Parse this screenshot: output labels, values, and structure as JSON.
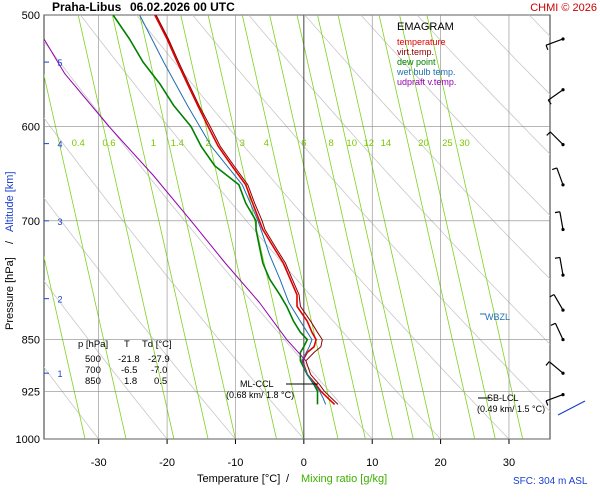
{
  "header": {
    "station": "Praha-Libus",
    "datetime": "06.02.2026 00 UTC",
    "credit": "CHMI © 2026"
  },
  "colors": {
    "temperature": "#e00000",
    "virt_temp": "#8b0000",
    "dew_point": "#008000",
    "wet_bulb": "#1e6fb0",
    "udpraft": "#9400b0",
    "mixing_ratio": "#7ed321",
    "dry_adiabat": "#c8c8c8",
    "altitude": "#1a3fd0",
    "grid": "#8a8a8a",
    "credit": "#cc0000"
  },
  "legend": {
    "title": "EMAGRAM",
    "items": [
      {
        "label": "temperature",
        "color": "#e00000"
      },
      {
        "label": "virt.temp.",
        "color": "#8b0000"
      },
      {
        "label": "dew point",
        "color": "#008000"
      },
      {
        "label": "wet bulb temp.",
        "color": "#1e6fb0"
      },
      {
        "label": "udpraft v.temp.",
        "color": "#9400b0"
      }
    ]
  },
  "table": {
    "header": [
      "p [hPa]",
      "T",
      "Td [°C]"
    ],
    "rows": [
      [
        "500",
        "-21.8",
        "-27.9"
      ],
      [
        "700",
        "-6.5",
        "-7.0"
      ],
      [
        "850",
        "1.8",
        "0.5"
      ]
    ]
  },
  "annotations": {
    "ml_ccl": "ML-CCL",
    "ml_ccl_value": "(0.68 km/ 1.8 °C)",
    "sb_lcl": "SB-LCL",
    "sb_lcl_value": "(0.49 km/ 1.5 °C)",
    "wbzl": "WBZL",
    "sfc": "SFC: 304 m ASL"
  },
  "axes": {
    "x_label": "Temperature [°C]",
    "x_sep": "/",
    "x_label2": "Mixing ratio [g/kg]",
    "y_label": "Pressure [hPa]",
    "y_sep": "/",
    "y_label2": "Altitude [km]"
  },
  "chart_data": {
    "type": "line",
    "title": "EMAGRAM",
    "x_range": [
      -38,
      36
    ],
    "y_range_hpa": [
      1000,
      500
    ],
    "log_pressure": true,
    "x_ticks": [
      -30,
      -20,
      -10,
      0,
      10,
      20,
      30
    ],
    "pressure_ticks": [
      500,
      600,
      700,
      850,
      925,
      1000
    ],
    "pressure_labels": [
      "500",
      "600",
      "700",
      "850",
      "925",
      "1000"
    ],
    "altitude_ticks": [
      {
        "km": 5,
        "p": 540
      },
      {
        "km": 4,
        "p": 617
      },
      {
        "km": 3,
        "p": 700
      },
      {
        "km": 2,
        "p": 795
      },
      {
        "km": 1,
        "p": 898
      }
    ],
    "mixing_ratio_labels": [
      "0.4",
      "0.6",
      "1",
      "1.4",
      "2",
      "3",
      "4",
      "6",
      "8",
      "10",
      "12",
      "14",
      "20",
      "25",
      "30"
    ],
    "mixing_ratio_label_x": [
      -33,
      -28.5,
      -22,
      -18.5,
      -14,
      -9,
      -5.5,
      0,
      4,
      7,
      9.5,
      12,
      17.5,
      21,
      23.5
    ],
    "mixing_ratio_line_x_at_1000": [
      -32,
      -26,
      -19,
      -14,
      -10,
      -4,
      0,
      5,
      9,
      13,
      16,
      19,
      25,
      28,
      32
    ],
    "dry_adiabat_x_at_1000": [
      -30,
      -20,
      -10,
      0,
      10,
      20,
      30,
      40,
      50,
      60,
      70,
      80,
      90,
      100
    ],
    "series": [
      {
        "name": "temperature",
        "points": [
          [
            945,
            4.5
          ],
          [
            935,
            3.5
          ],
          [
            925,
            2.5
          ],
          [
            915,
            1.8
          ],
          [
            900,
            0.5
          ],
          [
            880,
            -0.2
          ],
          [
            868,
            0.5
          ],
          [
            860,
            1.5
          ],
          [
            850,
            1.8
          ],
          [
            840,
            1.2
          ],
          [
            825,
            0.5
          ],
          [
            805,
            -1.0
          ],
          [
            790,
            -1.0
          ],
          [
            770,
            -2.0
          ],
          [
            750,
            -3.0
          ],
          [
            730,
            -4.5
          ],
          [
            710,
            -6.0
          ],
          [
            700,
            -6.5
          ],
          [
            680,
            -7.5
          ],
          [
            660,
            -8.5
          ],
          [
            640,
            -10.5
          ],
          [
            620,
            -12.5
          ],
          [
            600,
            -14.0
          ],
          [
            580,
            -15.5
          ],
          [
            560,
            -17.0
          ],
          [
            540,
            -18.5
          ],
          [
            520,
            -20.0
          ],
          [
            500,
            -21.8
          ]
        ]
      },
      {
        "name": "virt.temp.",
        "points": [
          [
            945,
            5.0
          ],
          [
            935,
            4.0
          ],
          [
            925,
            3.0
          ],
          [
            915,
            2.3
          ],
          [
            900,
            1.0
          ],
          [
            880,
            0.3
          ],
          [
            868,
            1.5
          ],
          [
            860,
            2.5
          ],
          [
            850,
            2.7
          ],
          [
            840,
            2.0
          ],
          [
            825,
            1.0
          ],
          [
            805,
            -0.5
          ],
          [
            790,
            -0.7
          ],
          [
            770,
            -1.7
          ],
          [
            750,
            -2.7
          ],
          [
            730,
            -4.2
          ],
          [
            710,
            -5.7
          ],
          [
            700,
            -6.1
          ],
          [
            680,
            -7.2
          ],
          [
            660,
            -8.2
          ],
          [
            640,
            -10.2
          ],
          [
            620,
            -12.2
          ],
          [
            600,
            -13.7
          ],
          [
            580,
            -15.3
          ],
          [
            560,
            -16.8
          ],
          [
            540,
            -18.3
          ],
          [
            520,
            -19.8
          ],
          [
            500,
            -21.6
          ]
        ]
      },
      {
        "name": "dew point",
        "points": [
          [
            945,
            2.0
          ],
          [
            935,
            2.0
          ],
          [
            925,
            2.0
          ],
          [
            915,
            1.5
          ],
          [
            900,
            0.5
          ],
          [
            880,
            -0.5
          ],
          [
            868,
            -0.5
          ],
          [
            860,
            0.0
          ],
          [
            850,
            0.5
          ],
          [
            840,
            -0.5
          ],
          [
            825,
            -1.5
          ],
          [
            805,
            -2.5
          ],
          [
            790,
            -3.5
          ],
          [
            770,
            -5.0
          ],
          [
            750,
            -6.0
          ],
          [
            730,
            -6.5
          ],
          [
            710,
            -7.0
          ],
          [
            700,
            -7.0
          ],
          [
            680,
            -8.5
          ],
          [
            660,
            -9.5
          ],
          [
            640,
            -13.0
          ],
          [
            620,
            -15.0
          ],
          [
            600,
            -16.5
          ],
          [
            580,
            -19.0
          ],
          [
            560,
            -21.0
          ],
          [
            540,
            -23.5
          ],
          [
            520,
            -25.5
          ],
          [
            500,
            -27.9
          ]
        ]
      },
      {
        "name": "wet bulb temp.",
        "points": [
          [
            945,
            3.2
          ],
          [
            935,
            2.8
          ],
          [
            925,
            2.3
          ],
          [
            915,
            1.6
          ],
          [
            900,
            0.5
          ],
          [
            880,
            -0.3
          ],
          [
            860,
            0.8
          ],
          [
            850,
            1.2
          ],
          [
            825,
            -0.5
          ],
          [
            800,
            -2.2
          ],
          [
            770,
            -3.5
          ],
          [
            740,
            -5.0
          ],
          [
            700,
            -6.7
          ],
          [
            660,
            -9.0
          ],
          [
            620,
            -13.5
          ],
          [
            580,
            -17.0
          ],
          [
            540,
            -20.5
          ],
          [
            500,
            -24.0
          ]
        ]
      },
      {
        "name": "udpraft v.temp.",
        "points": [
          [
            880,
            0.3
          ],
          [
            850,
            -2.5
          ],
          [
            800,
            -6.5
          ],
          [
            750,
            -11.5
          ],
          [
            700,
            -16.5
          ],
          [
            650,
            -22.0
          ],
          [
            600,
            -28.5
          ],
          [
            550,
            -35.0
          ],
          [
            520,
            -38.0
          ]
        ]
      }
    ],
    "wind_barbs_pressure": [
      520,
      565,
      618,
      660,
      710,
      765,
      810,
      850,
      898,
      930
    ]
  }
}
